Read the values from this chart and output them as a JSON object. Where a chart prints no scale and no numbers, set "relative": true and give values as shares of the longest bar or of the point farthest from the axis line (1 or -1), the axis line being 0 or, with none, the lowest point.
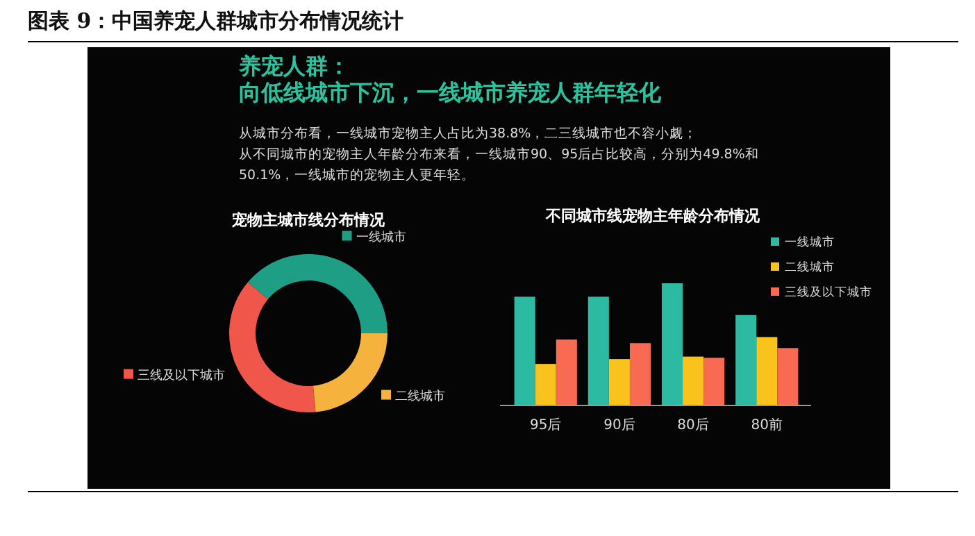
{
  "chart_data": [
    {
      "type": "other",
      "title": "图表 9：中国养宠人群城市分布情况统计"
    },
    {
      "type": "other",
      "title": "养宠人群：",
      "subtitle": "向低线城市下沉，一线城市养宠人群年轻化",
      "annotations": [
        "从城市分布看，一线城市宠物主人占比为38.8%，二三线城市也不容小觑；",
        "从不同城市的宠物主人年龄分布来看，一线城市90、95后占比较高，分别为49.8%和",
        "50.1%，一线城市的宠物主人更年轻。"
      ]
    },
    {
      "type": "donut",
      "legend": "top left",
      "title": "宠物主城市线分布情况",
      "categories": [
        "一线城市",
        "二线城市",
        "三线及以下城市"
      ],
      "values": [
        38.8,
        23.6,
        37.6
      ],
      "colors": [
        "#1f9e86",
        "#f5b23c",
        "#f0574a"
      ]
    },
    {
      "type": "bar",
      "title": "不同城市线宠物主年龄分布情况",
      "relative": true,
      "legend": "right",
      "categories": [
        "95后",
        "90后",
        "80后",
        "80前"
      ],
      "series": [
        {
          "name": "一线城市",
          "color": "#2cbba2",
          "values": [
            0.89,
            0.89,
            1,
            0.74
          ]
        },
        {
          "name": "二线城市",
          "color": "#f9c21c",
          "values": [
            0.34,
            0.38,
            0.4,
            0.56
          ]
        },
        {
          "name": "三线及以下城市",
          "color": "#f96a52",
          "values": [
            0.54,
            0.51,
            0.39,
            0.47
          ]
        }
      ]
    }
  ]
}
